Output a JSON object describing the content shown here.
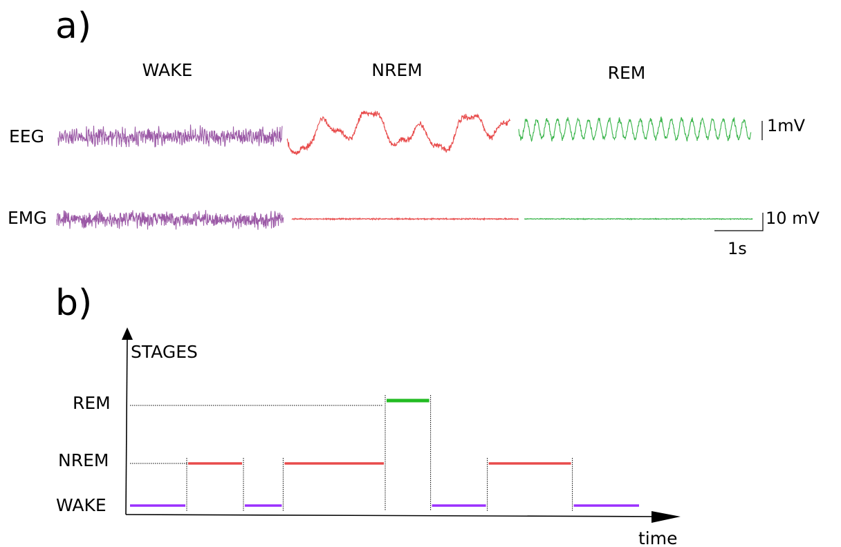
{
  "panel_a": {
    "label": "a)",
    "stages": [
      {
        "name": "WAKE",
        "color": "#9b59a6"
      },
      {
        "name": "NREM",
        "color": "#e84b4b"
      },
      {
        "name": "REM",
        "color": "#39b44a"
      }
    ],
    "row_labels": {
      "eeg": "EEG",
      "emg": "EMG"
    },
    "scale_bars": {
      "eeg_amplitude": "1mV",
      "emg_amplitude": "10 mV",
      "time": "1s"
    }
  },
  "panel_b": {
    "label": "b)",
    "y_axis_label": "STAGES",
    "x_axis_label": "time",
    "levels": [
      "WAKE",
      "NREM",
      "REM"
    ],
    "colors": {
      "WAKE": "#9b30ff",
      "NREM": "#e84b4b",
      "REM": "#22bb22"
    },
    "hypnogram": [
      {
        "stage": "WAKE",
        "start": 0,
        "end": 1
      },
      {
        "stage": "NREM",
        "start": 1,
        "end": 2
      },
      {
        "stage": "WAKE",
        "start": 2,
        "end": 2.7
      },
      {
        "stage": "NREM",
        "start": 2.7,
        "end": 4.5
      },
      {
        "stage": "REM",
        "start": 4.5,
        "end": 5.3
      },
      {
        "stage": "WAKE",
        "start": 5.3,
        "end": 6.3
      },
      {
        "stage": "NREM",
        "start": 6.3,
        "end": 7.8
      },
      {
        "stage": "WAKE",
        "start": 7.8,
        "end": 9
      }
    ]
  }
}
